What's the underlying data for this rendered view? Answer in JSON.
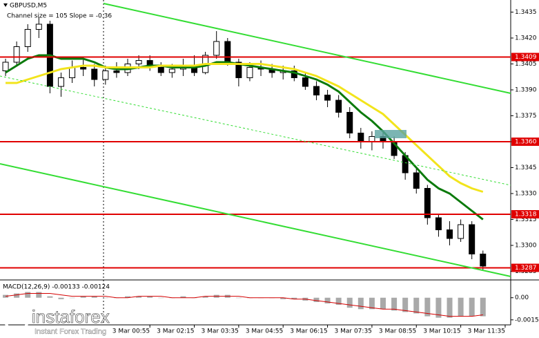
{
  "chart_data": [
    {
      "type": "candlestick",
      "title": "GBPUSD,M5",
      "subtitle": "Channel size = 105 Slope = -0.36",
      "categories": [
        null,
        null,
        null,
        null,
        null,
        null,
        null,
        null,
        null,
        null,
        null,
        null,
        null,
        "3 Mar 00:55",
        null,
        null,
        null,
        "3 Mar 02:15",
        null,
        null,
        null,
        "3 Mar 03:35",
        null,
        null,
        null,
        "3 Mar 04:55",
        null,
        null,
        null,
        "3 Mar 06:15",
        null,
        null,
        null,
        "3 Mar 07:35",
        null,
        null,
        null,
        "3 Mar 08:55",
        null,
        null,
        null,
        "3 Mar 10:15",
        null,
        null,
        null,
        "3 Mar 11:35"
      ],
      "open": [
        1.3401,
        1.3406,
        1.3415,
        1.3425,
        1.3428,
        1.3392,
        1.3397,
        1.3403,
        1.3402,
        1.3396,
        1.3401,
        1.34,
        1.3405,
        1.3407,
        1.3403,
        1.34,
        1.3402,
        1.3404,
        1.34,
        1.341,
        1.3418,
        1.3406,
        1.3397,
        1.3403,
        1.3402,
        1.34,
        1.3401,
        1.3397,
        1.3392,
        1.3387,
        1.3384,
        1.3377,
        1.3365,
        1.336,
        1.3363,
        1.336,
        1.3352,
        1.3342,
        1.3333,
        1.3316,
        1.3309,
        1.3304,
        1.3312,
        1.3295,
        null,
        null
      ],
      "high": [
        1.3408,
        1.3418,
        1.3428,
        1.3432,
        1.343,
        1.34,
        1.3407,
        1.3408,
        1.3405,
        1.3404,
        1.3406,
        1.3408,
        1.341,
        1.341,
        1.3406,
        1.3405,
        1.3408,
        1.341,
        1.3412,
        1.3424,
        1.342,
        1.3408,
        1.3406,
        1.3407,
        1.3405,
        1.3404,
        1.3404,
        1.34,
        1.3395,
        1.339,
        1.3387,
        1.338,
        1.3368,
        1.3366,
        1.3366,
        1.3363,
        1.3354,
        1.3345,
        1.3335,
        1.3318,
        1.3314,
        1.3315,
        1.3314,
        1.3297,
        null,
        null
      ],
      "low": [
        1.3398,
        1.3404,
        1.3412,
        1.342,
        1.3388,
        1.3386,
        1.3394,
        1.3398,
        1.3392,
        1.3393,
        1.3397,
        1.3398,
        1.3402,
        1.3401,
        1.3398,
        1.3397,
        1.3398,
        1.3398,
        1.3399,
        1.3408,
        1.3404,
        1.3392,
        1.3395,
        1.3398,
        1.3397,
        1.3396,
        1.3395,
        1.339,
        1.3384,
        1.338,
        1.3374,
        1.3362,
        1.3356,
        1.3355,
        1.3356,
        1.335,
        1.3338,
        1.333,
        1.3312,
        1.3305,
        1.33,
        1.3302,
        1.3292,
        1.3286,
        null,
        null
      ],
      "close": [
        1.3406,
        1.3415,
        1.3425,
        1.3428,
        1.3392,
        1.3397,
        1.3403,
        1.3402,
        1.3396,
        1.3401,
        1.34,
        1.3405,
        1.3407,
        1.3403,
        1.34,
        1.3402,
        1.3404,
        1.34,
        1.341,
        1.3418,
        1.3406,
        1.3397,
        1.3403,
        1.3402,
        1.34,
        1.3401,
        1.3397,
        1.3392,
        1.3387,
        1.3384,
        1.3377,
        1.3365,
        1.336,
        1.3363,
        1.336,
        1.3352,
        1.3342,
        1.3333,
        1.3316,
        1.3309,
        1.3304,
        1.3312,
        1.3295,
        1.3288,
        null,
        null
      ],
      "series": [
        {
          "color": "#0b7a0b",
          "values": [
            1.34,
            1.3404,
            1.3408,
            1.341,
            1.341,
            1.3408,
            1.3408,
            1.3408,
            1.3406,
            1.3403,
            1.3402,
            1.3402,
            1.3403,
            1.3404,
            1.3404,
            1.3403,
            1.3403,
            1.3403,
            1.3404,
            1.3406,
            1.3406,
            1.3405,
            1.3404,
            1.3403,
            1.3402,
            1.3401,
            1.34,
            1.3398,
            1.3396,
            1.3393,
            1.3389,
            1.3383,
            1.3377,
            1.3372,
            1.3366,
            1.3359,
            1.3352,
            1.3345,
            1.3338,
            1.3333,
            1.333,
            1.3325,
            1.332,
            1.3315,
            null,
            null
          ]
        },
        {
          "color": "#f2e41c",
          "values": [
            1.3394,
            1.3394,
            1.3396,
            1.3398,
            1.34,
            1.3402,
            1.3403,
            1.3404,
            1.3404,
            1.3403,
            1.3403,
            1.3403,
            1.3403,
            1.3403,
            1.3404,
            1.3404,
            1.3404,
            1.3404,
            1.3405,
            1.3405,
            1.3405,
            1.3405,
            1.3405,
            1.3405,
            1.3404,
            1.3403,
            1.3402,
            1.34,
            1.3398,
            1.3395,
            1.3392,
            1.3388,
            1.3384,
            1.338,
            1.3376,
            1.337,
            1.3364,
            1.3358,
            1.3352,
            1.3346,
            1.334,
            1.3336,
            1.3333,
            1.3331,
            null,
            null
          ]
        }
      ],
      "levels": [
        1.3409,
        {
          "value": 1.336,
          "label": "1.3360"
        },
        1.3318,
        1.3287
      ],
      "level_color": "#e00000",
      "ylim": [
        1.328,
        1.3442
      ],
      "yticks": [
        1.3435,
        {
          "value": 1.342,
          "label": "1.3420"
        },
        1.3405,
        {
          "value": 1.339,
          "label": "1.3390"
        },
        1.3375,
        {
          "value": 1.336,
          "label": "1.3360"
        },
        1.3345,
        {
          "value": 1.333,
          "label": "1.3330"
        },
        1.3315,
        {
          "value": 1.33,
          "label": "1.3300"
        },
        1.3285
      ]
    },
    {
      "type": "macd",
      "title": "MACD(12,26,9) -0.00133 -0.00124",
      "color": "#a9a9a9",
      "values": [
        0.0002,
        0.0003,
        0.0004,
        0.0004,
        0.0001,
        -0.0001,
        0,
        0.0001,
        0.0001,
        0,
        0,
        0.0001,
        0.0001,
        0.0001,
        0,
        0,
        0.0001,
        0,
        0.0001,
        0.0002,
        0.0002,
        0,
        0,
        0,
        0,
        -0.0001,
        -0.0001,
        -0.0002,
        -0.0003,
        -0.0004,
        -0.0005,
        -0.0007,
        -0.0008,
        -0.0008,
        -0.0008,
        -0.0009,
        -0.001,
        -0.0011,
        -0.0013,
        -0.0014,
        -0.0014,
        -0.0013,
        -0.0013,
        -0.0013,
        null,
        null
      ],
      "signal": {
        "color": "#d40000",
        "values": [
          0.0001,
          0.0002,
          0.0003,
          0.0003,
          0.0003,
          0.0002,
          0.0001,
          0.0001,
          0.0001,
          0.0001,
          0,
          0,
          0.0001,
          0.0001,
          0.0001,
          0,
          0,
          0,
          0.0001,
          0.0001,
          0.0001,
          0.0001,
          0,
          0,
          0,
          0,
          -0.0001,
          -0.0001,
          -0.0002,
          -0.0003,
          -0.0004,
          -0.0005,
          -0.0006,
          -0.0007,
          -0.0008,
          -0.0008,
          -0.0009,
          -0.001,
          -0.0011,
          -0.0012,
          -0.0013,
          -0.0013,
          -0.0013,
          -0.0012,
          null,
          null
        ]
      },
      "ylim": [
        -0.0019,
        0.0011
      ],
      "yticks": [
        {
          "value": 0,
          "label": "0.00"
        },
        -0.00155
      ]
    }
  ],
  "logo": {
    "name": "instaforex",
    "tagline": "Instant Forex Trading"
  }
}
